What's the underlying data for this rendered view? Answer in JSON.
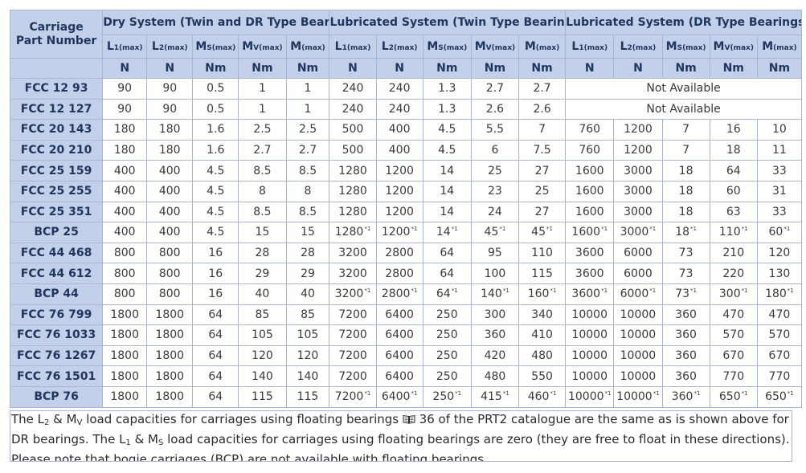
{
  "header": {
    "part_label_line1": "Carriage",
    "part_label_line2": "Part Number",
    "groups": [
      {
        "label": "Dry System (Twin and DR Type Bearings)"
      },
      {
        "label": "Lubricated System (Twin Type Bearings)"
      },
      {
        "label": "Lubricated System (DR Type Bearings)"
      }
    ],
    "columns": [
      {
        "main": "L",
        "sub1": "1",
        "sub2": "(max)",
        "unit": "N"
      },
      {
        "main": "L",
        "sub1": "2",
        "sub2": "(max)",
        "unit": "N"
      },
      {
        "main": "M",
        "sub1": "S",
        "sub2": "(max)",
        "unit": "Nm"
      },
      {
        "main": "M",
        "sub1": "V",
        "sub2": "(max)",
        "unit": "Nm"
      },
      {
        "main": "M",
        "sub1": "",
        "sub2": "(max)",
        "unit": "Nm"
      },
      {
        "main": "L",
        "sub1": "1",
        "sub2": "(max)",
        "unit": "N"
      },
      {
        "main": "L",
        "sub1": "2",
        "sub2": "(max)",
        "unit": "N"
      },
      {
        "main": "M",
        "sub1": "S",
        "sub2": "(max)",
        "unit": "Nm"
      },
      {
        "main": "M",
        "sub1": "V",
        "sub2": "(max)",
        "unit": "Nm"
      },
      {
        "main": "M",
        "sub1": "",
        "sub2": "(max)",
        "unit": "Nm"
      },
      {
        "main": "L",
        "sub1": "1",
        "sub2": "(max)",
        "unit": "N"
      },
      {
        "main": "L",
        "sub1": "2",
        "sub2": "(max)",
        "unit": "N"
      },
      {
        "main": "M",
        "sub1": "S",
        "sub2": "(max)",
        "unit": "Nm"
      },
      {
        "main": "M",
        "sub1": "V",
        "sub2": "(max)",
        "unit": "Nm"
      },
      {
        "main": "M",
        "sub1": "",
        "sub2": "(max)",
        "unit": "Nm"
      }
    ]
  },
  "ref_mark": "*1",
  "not_available": "Not Available",
  "rows": [
    {
      "part": "FCC 12 93",
      "dry": [
        "90",
        "90",
        "0.5",
        "1",
        "1"
      ],
      "lube_twin": [
        "240",
        "240",
        "1.3",
        "2.7",
        "2.7"
      ],
      "lube_dr": null,
      "ref": false
    },
    {
      "part": "FCC 12 127",
      "dry": [
        "90",
        "90",
        "0.5",
        "1",
        "1"
      ],
      "lube_twin": [
        "240",
        "240",
        "1.3",
        "2.6",
        "2.6"
      ],
      "lube_dr": null,
      "ref": false
    },
    {
      "part": "FCC 20 143",
      "dry": [
        "180",
        "180",
        "1.6",
        "2.5",
        "2.5"
      ],
      "lube_twin": [
        "500",
        "400",
        "4.5",
        "5.5",
        "7"
      ],
      "lube_dr": [
        "760",
        "1200",
        "7",
        "16",
        "10"
      ],
      "ref": false
    },
    {
      "part": "FCC 20 210",
      "dry": [
        "180",
        "180",
        "1.6",
        "2.7",
        "2.7"
      ],
      "lube_twin": [
        "500",
        "400",
        "4.5",
        "6",
        "7.5"
      ],
      "lube_dr": [
        "760",
        "1200",
        "7",
        "18",
        "11"
      ],
      "ref": false
    },
    {
      "part": "FCC 25 159",
      "dry": [
        "400",
        "400",
        "4.5",
        "8.5",
        "8.5"
      ],
      "lube_twin": [
        "1280",
        "1200",
        "14",
        "25",
        "27"
      ],
      "lube_dr": [
        "1600",
        "3000",
        "18",
        "64",
        "33"
      ],
      "ref": false
    },
    {
      "part": "FCC 25 255",
      "dry": [
        "400",
        "400",
        "4.5",
        "8",
        "8"
      ],
      "lube_twin": [
        "1280",
        "1200",
        "14",
        "23",
        "25"
      ],
      "lube_dr": [
        "1600",
        "3000",
        "18",
        "60",
        "31"
      ],
      "ref": false
    },
    {
      "part": "FCC 25 351",
      "dry": [
        "400",
        "400",
        "4.5",
        "8.5",
        "8.5"
      ],
      "lube_twin": [
        "1280",
        "1200",
        "14",
        "24",
        "27"
      ],
      "lube_dr": [
        "1600",
        "3000",
        "18",
        "63",
        "33"
      ],
      "ref": false
    },
    {
      "part": "BCP 25",
      "dry": [
        "400",
        "400",
        "4.5",
        "15",
        "15"
      ],
      "lube_twin": [
        "1280",
        "1200",
        "14",
        "45",
        "45"
      ],
      "lube_dr": [
        "1600",
        "3000",
        "18",
        "110",
        "60"
      ],
      "ref": true
    },
    {
      "part": "FCC 44 468",
      "dry": [
        "800",
        "800",
        "16",
        "28",
        "28"
      ],
      "lube_twin": [
        "3200",
        "2800",
        "64",
        "95",
        "110"
      ],
      "lube_dr": [
        "3600",
        "6000",
        "73",
        "210",
        "120"
      ],
      "ref": false
    },
    {
      "part": "FCC 44 612",
      "dry": [
        "800",
        "800",
        "16",
        "29",
        "29"
      ],
      "lube_twin": [
        "3200",
        "2800",
        "64",
        "100",
        "115"
      ],
      "lube_dr": [
        "3600",
        "6000",
        "73",
        "220",
        "130"
      ],
      "ref": false
    },
    {
      "part": "BCP 44",
      "dry": [
        "800",
        "800",
        "16",
        "40",
        "40"
      ],
      "lube_twin": [
        "3200",
        "2800",
        "64",
        "140",
        "160"
      ],
      "lube_dr": [
        "3600",
        "6000",
        "73",
        "300",
        "180"
      ],
      "ref": true
    },
    {
      "part": "FCC 76 799",
      "dry": [
        "1800",
        "1800",
        "64",
        "85",
        "85"
      ],
      "lube_twin": [
        "7200",
        "6400",
        "250",
        "300",
        "340"
      ],
      "lube_dr": [
        "10000",
        "10000",
        "360",
        "470",
        "470"
      ],
      "ref": false
    },
    {
      "part": "FCC 76 1033",
      "dry": [
        "1800",
        "1800",
        "64",
        "105",
        "105"
      ],
      "lube_twin": [
        "7200",
        "6400",
        "250",
        "360",
        "410"
      ],
      "lube_dr": [
        "10000",
        "10000",
        "360",
        "570",
        "570"
      ],
      "ref": false
    },
    {
      "part": "FCC 76 1267",
      "dry": [
        "1800",
        "1800",
        "64",
        "120",
        "120"
      ],
      "lube_twin": [
        "7200",
        "6400",
        "250",
        "420",
        "480"
      ],
      "lube_dr": [
        "10000",
        "10000",
        "360",
        "670",
        "670"
      ],
      "ref": false
    },
    {
      "part": "FCC 76 1501",
      "dry": [
        "1800",
        "1800",
        "64",
        "140",
        "140"
      ],
      "lube_twin": [
        "7200",
        "6400",
        "250",
        "480",
        "550"
      ],
      "lube_dr": [
        "10000",
        "10000",
        "360",
        "770",
        "770"
      ],
      "ref": false
    },
    {
      "part": "BCP 76",
      "dry": [
        "1800",
        "1800",
        "64",
        "115",
        "115"
      ],
      "lube_twin": [
        "7200",
        "6400",
        "250",
        "415",
        "460"
      ],
      "lube_dr": [
        "10000",
        "10000",
        "360",
        "650",
        "650"
      ],
      "ref": true
    }
  ],
  "note": {
    "t1": "The L",
    "t1_sub": "2",
    "t2": " & M",
    "t2_sub": "V",
    "t3": " load capacities for carriages using floating bearings ",
    "book_icon": "book-icon",
    "t4": " 36 of the PRT2 catalogue are the same as is shown above for DR bearings. The L",
    "t4_sub": "1",
    "t5": " & M",
    "t5_sub": "S",
    "t6": " load capacities for carriages using floating bearings are zero (they are free to float in these directions). Please note that bogie carriages (BCP) are not available with floating bearings."
  },
  "colors": {
    "header_bg": "#c2d0e9",
    "header_text": "#1f3760",
    "grid": "#a9b5cf"
  }
}
